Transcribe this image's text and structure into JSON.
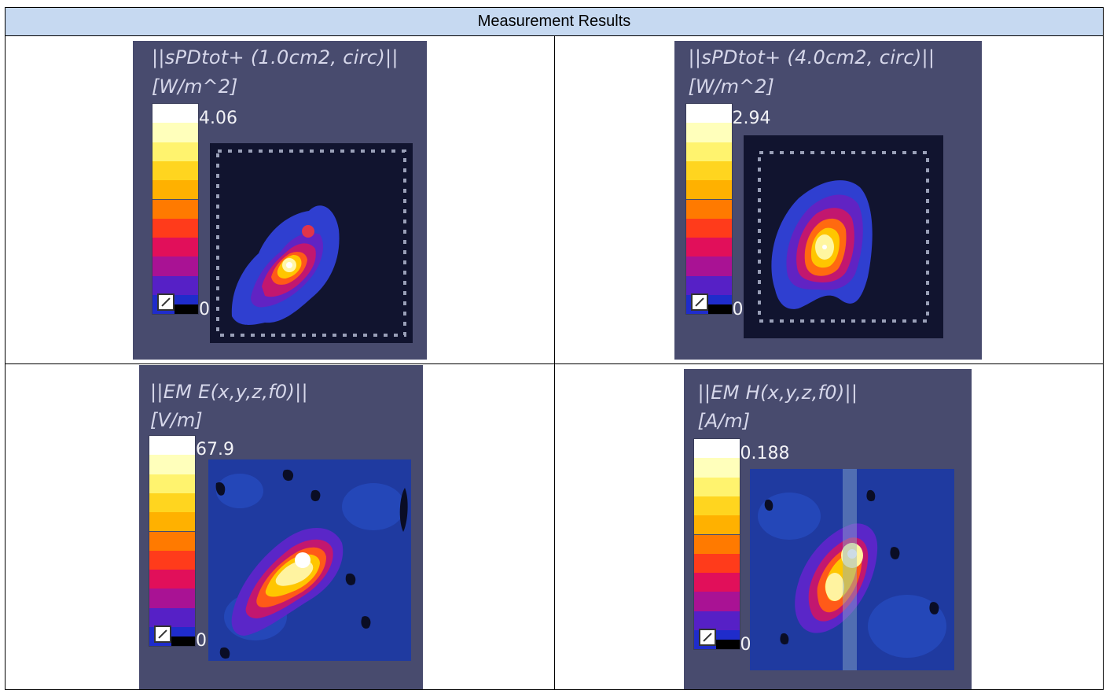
{
  "table": {
    "header": "Measurement Results"
  },
  "panels": [
    {
      "title": "||sPDtot+ (1.0cm2, circ)||",
      "unit": "[W/m^2]",
      "max": "4.06",
      "min": "0"
    },
    {
      "title": "||sPDtot+ (4.0cm2, circ)||",
      "unit": "[W/m^2]",
      "max": "2.94",
      "min": "0"
    },
    {
      "title": "||EM E(x,y,z,f0)||",
      "unit": "[V/m]",
      "max": "67.9",
      "min": "0"
    },
    {
      "title": "||EM H(x,y,z,f0)||",
      "unit": "[A/m]",
      "max": "0.188",
      "min": "0"
    }
  ],
  "colors": {
    "header_bg": "#c6d9f1",
    "panel_bg": "#484b6e",
    "scan_area_dark": "#11142f",
    "field_blue": "#1e3a9c"
  },
  "icons": {
    "colorbar_toggle": "scale-toggle-icon"
  }
}
